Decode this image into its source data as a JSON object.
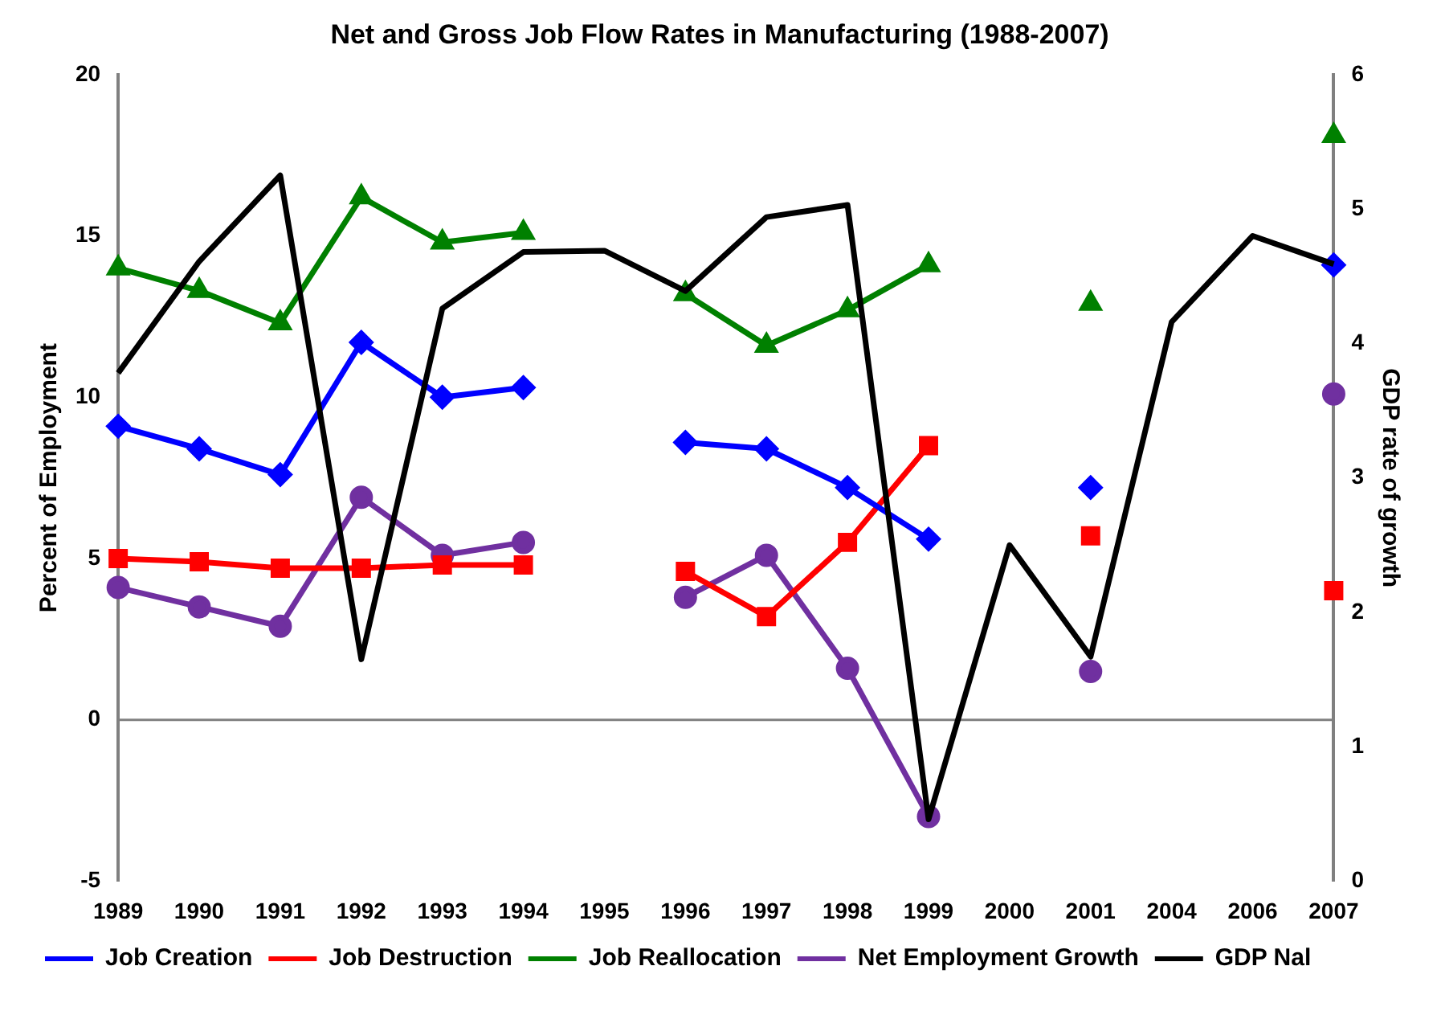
{
  "chart_data": {
    "type": "line",
    "title": "Net and Gross Job Flow Rates in Manufacturing (1988-2007)",
    "ylabel": "Percent of Employment",
    "y2label": "GDP rate of growth",
    "categories": [
      "1989",
      "1990",
      "1991",
      "1992",
      "1993",
      "1994",
      "1995",
      "1996",
      "1997",
      "1998",
      "1999",
      "2000",
      "2001",
      "2004",
      "2006",
      "2007"
    ],
    "series": [
      {
        "name": "Job Creation",
        "color": "#0000ff",
        "marker": "diamond",
        "values": [
          9.1,
          8.4,
          7.6,
          11.7,
          10.0,
          10.3,
          null,
          8.6,
          8.4,
          7.2,
          5.6,
          null,
          7.2,
          null,
          null,
          14.1
        ]
      },
      {
        "name": "Job Destruction",
        "color": "#ff0000",
        "marker": "square",
        "values": [
          5.0,
          4.9,
          4.7,
          4.7,
          4.8,
          4.8,
          null,
          4.6,
          3.2,
          5.5,
          8.5,
          null,
          5.7,
          null,
          null,
          4.0
        ]
      },
      {
        "name": "Job Reallocation",
        "color": "#008000",
        "marker": "triangle",
        "values": [
          14.0,
          13.3,
          12.3,
          16.2,
          14.8,
          15.1,
          null,
          13.2,
          11.6,
          12.7,
          14.1,
          null,
          12.9,
          null,
          null,
          18.1
        ]
      },
      {
        "name": "Net Employment Growth",
        "color": "#7030a0",
        "marker": "circle",
        "values": [
          4.1,
          3.5,
          2.9,
          6.9,
          5.1,
          5.5,
          null,
          3.8,
          5.1,
          1.6,
          -3.0,
          null,
          1.5,
          null,
          null,
          10.1
        ]
      },
      {
        "name": "GDP Nal",
        "color": "#000000",
        "marker": "none",
        "axis": "y2",
        "values": [
          3.78,
          4.61,
          5.25,
          1.65,
          4.26,
          4.68,
          4.69,
          4.39,
          4.94,
          5.03,
          0.46,
          2.5,
          1.67,
          4.16,
          4.8,
          4.59
        ]
      }
    ],
    "ylim": [
      -5,
      20
    ],
    "yticks": [
      -5,
      0,
      5,
      10,
      15,
      20
    ],
    "y2lim": [
      0,
      6
    ],
    "y2ticks": [
      0,
      1,
      2,
      3,
      4,
      5,
      6
    ],
    "ref_lines": [
      {
        "axis": "y",
        "value": 0,
        "color": "#808080"
      }
    ],
    "grid": false,
    "legend": "bottom"
  }
}
